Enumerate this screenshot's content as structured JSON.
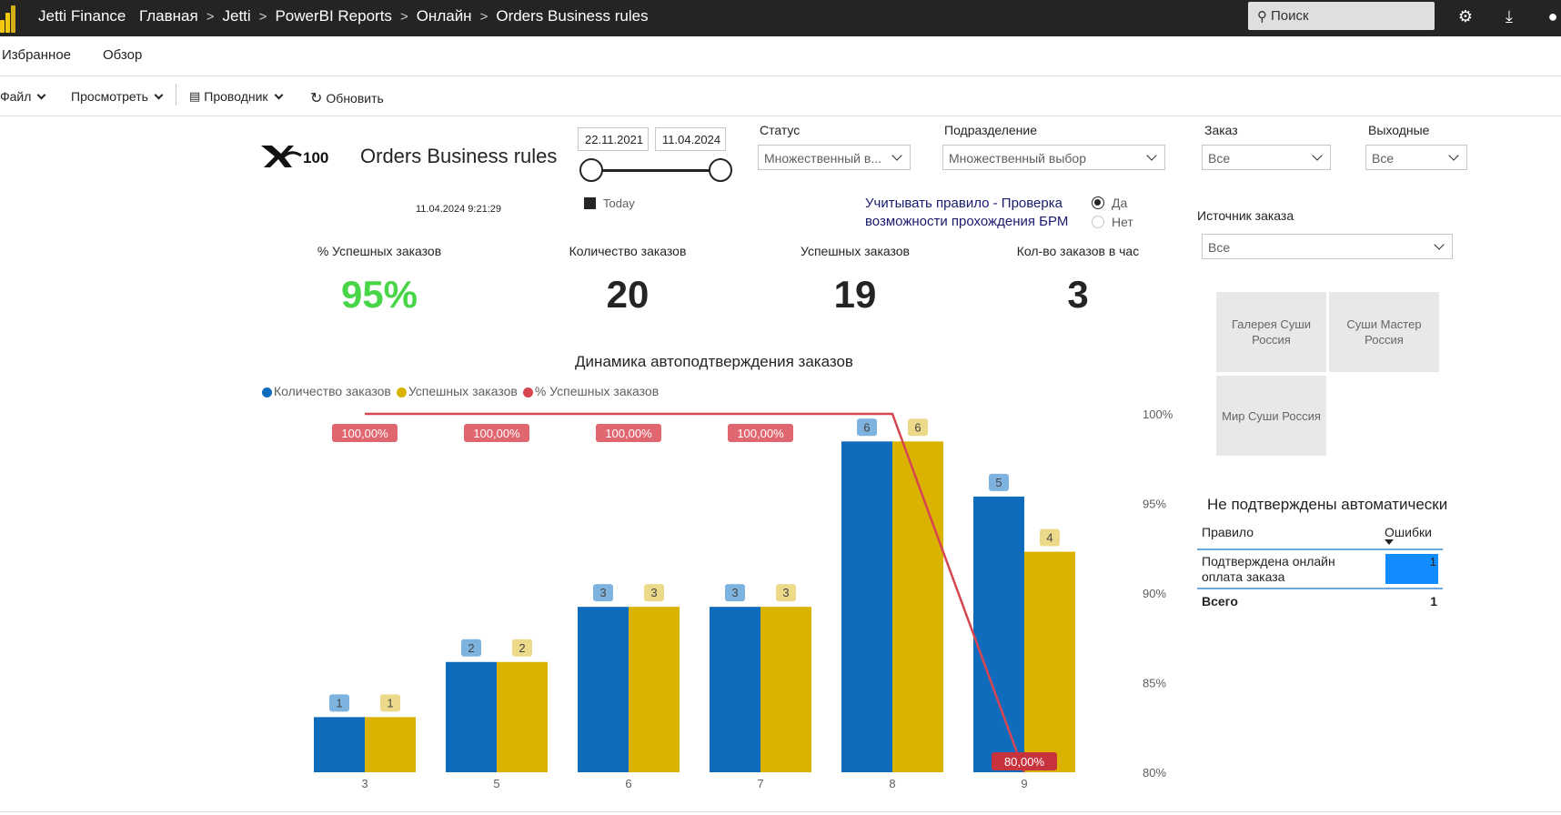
{
  "topbar": {
    "app_title": "Jetti Finance",
    "breadcrumb": [
      "Главная",
      "Jetti",
      "PowerBI Reports",
      "Онлайн",
      "Orders Business rules"
    ],
    "search_placeholder": "Поиск"
  },
  "menu": {
    "favorites": "Избранное",
    "overview": "Обзор"
  },
  "toolbar": {
    "file": "Файл",
    "view": "Просмотреть",
    "explorer": "Проводник",
    "refresh": "Обновить"
  },
  "report": {
    "title": "Orders Business rules",
    "refresh_time": "11.04.2024 9:21:29",
    "date_from": "22.11.2021",
    "date_to": "11.04.2024",
    "today_label": "Today",
    "slicers": {
      "status": {
        "label": "Статус",
        "value": "Множественный в..."
      },
      "division": {
        "label": "Подразделение",
        "value": "Множественный выбор"
      },
      "order": {
        "label": "Заказ",
        "value": "Все"
      },
      "weekend": {
        "label": "Выходные",
        "value": "Все"
      },
      "source": {
        "label": "Источник заказа",
        "value": "Все"
      }
    },
    "rule_toggle": {
      "text": "Учитывать правило - Проверка возможности прохождения БРМ",
      "options": [
        "Да",
        "Нет"
      ],
      "selected": "Да"
    },
    "kpis": [
      {
        "label": "% Успешных заказов",
        "value": "95%",
        "color": "#48d648"
      },
      {
        "label": "Количество заказов",
        "value": "20",
        "color": "#252423"
      },
      {
        "label": "Успешных заказов",
        "value": "19",
        "color": "#252423"
      },
      {
        "label": "Кол-во заказов в час",
        "value": "3",
        "color": "#252423"
      }
    ],
    "tiles": [
      "Галерея Суши Россия",
      "Суши Мастер Россия",
      "Мир Суши Россия"
    ],
    "table": {
      "title": "Не подтверждены автоматически",
      "col_rule": "Правило",
      "col_errors": "Ошибки",
      "rows": [
        {
          "rule": "Подтверждена онлайн оплата заказа",
          "errors": "1"
        }
      ],
      "total_label": "Всего",
      "total_value": "1"
    }
  },
  "chart_data": {
    "type": "bar",
    "title": "Динамика автоподтверждения заказов",
    "categories": [
      "3",
      "5",
      "6",
      "7",
      "8",
      "9"
    ],
    "series": [
      {
        "name": "Количество заказов",
        "type": "bar",
        "color": "#0f6cbd",
        "values": [
          1,
          2,
          3,
          3,
          6,
          5
        ]
      },
      {
        "name": "Успешных заказов",
        "type": "bar",
        "color": "#d9b300",
        "values": [
          1,
          2,
          3,
          3,
          6,
          4
        ]
      },
      {
        "name": "% Успешных заказов",
        "type": "line",
        "color": "#d64550",
        "values": [
          100,
          100,
          100,
          100,
          100,
          80
        ],
        "labels": [
          "100,00%",
          "100,00%",
          "100,00%",
          "100,00%",
          "",
          "80,00%"
        ]
      }
    ],
    "y2_ticks": [
      "100%",
      "95%",
      "90%",
      "85%",
      "80%"
    ],
    "y2lim": [
      80,
      100
    ],
    "legend": "top-left"
  }
}
